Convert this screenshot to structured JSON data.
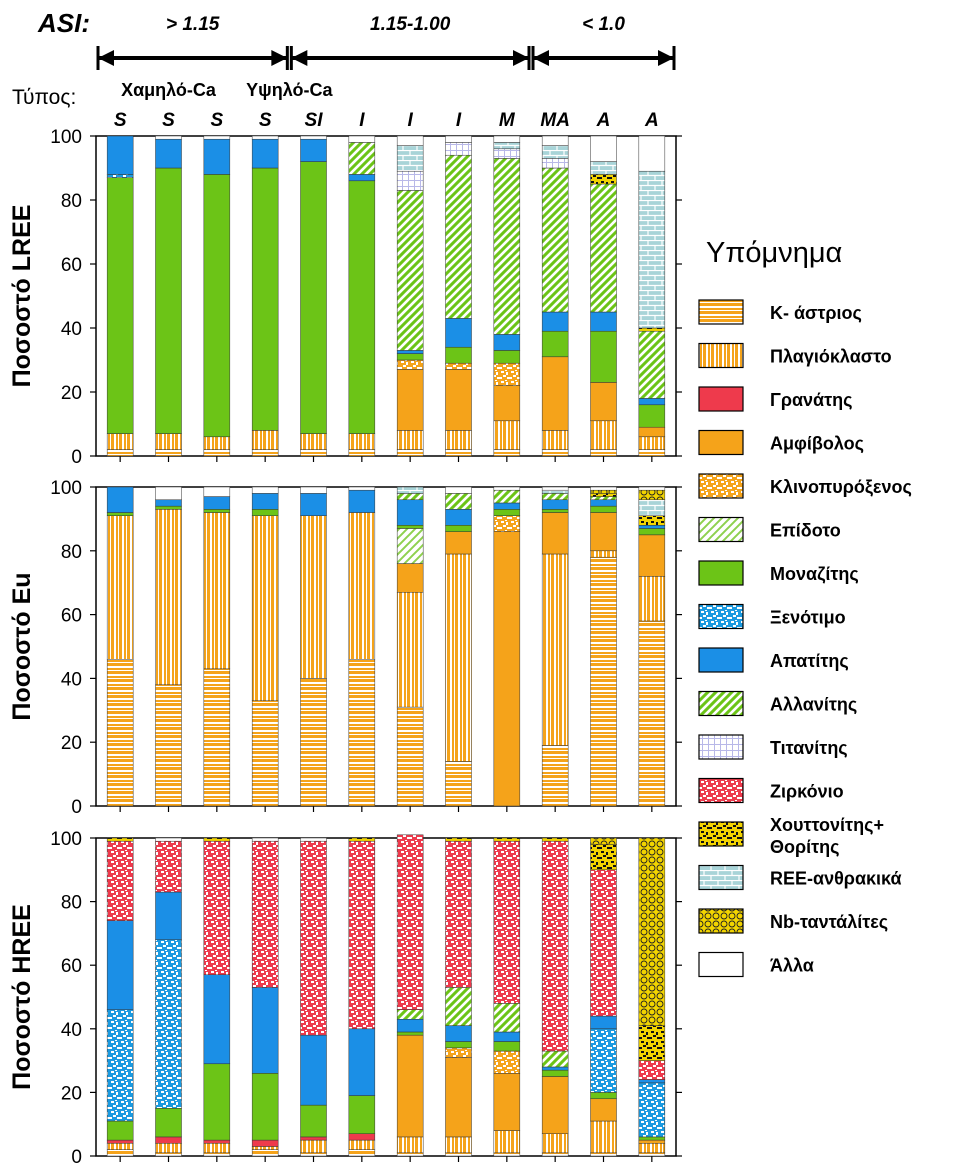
{
  "header": {
    "asi_label": "ASI:",
    "asi_groups": [
      {
        "label": "> 1.15",
        "from": 0,
        "to": 3
      },
      {
        "label": "1.15-1.00",
        "from": 4,
        "to": 8
      },
      {
        "label": "< 1.0",
        "from": 9,
        "to": 11
      }
    ],
    "type_label": "Τύπος:",
    "ca_labels": [
      {
        "label": "Χαμηλό-Ca",
        "from": 0,
        "to": 2
      },
      {
        "label": "Υψηλό-Ca",
        "from": 3,
        "to": 4
      }
    ]
  },
  "legend": {
    "title": "Υπόμνημα",
    "items": [
      {
        "key": "kf",
        "label": "K- άστριος",
        "color": "#f5a31a",
        "pattern": "hstripe"
      },
      {
        "key": "pl",
        "label": "Πλαγιόκλαστο",
        "color": "#f5a31a",
        "pattern": "vstripe"
      },
      {
        "key": "gt",
        "label": "Γρανάτης",
        "color": "#ee3a4c",
        "pattern": "solid"
      },
      {
        "key": "amp",
        "label": "Αμφίβολος",
        "color": "#f5a31a",
        "pattern": "solid"
      },
      {
        "key": "cpx",
        "label": "Κλινοπυρόξενος",
        "color": "#f5a31a",
        "pattern": "speckle"
      },
      {
        "key": "ep",
        "label": "Επίδοτο",
        "color": "#8fd14f",
        "pattern": "thindiag"
      },
      {
        "key": "mnz",
        "label": "Μοναζίτης",
        "color": "#6cc417",
        "pattern": "solid"
      },
      {
        "key": "xen",
        "label": "Ξενότιμο",
        "color": "#1b9ae0",
        "pattern": "speckle"
      },
      {
        "key": "ap",
        "label": "Απατίτης",
        "color": "#1b8fe6",
        "pattern": "solid"
      },
      {
        "key": "aln",
        "label": "Αλλανίτης",
        "color": "#6cc417",
        "pattern": "diag"
      },
      {
        "key": "ttn",
        "label": "Τιτανίτης",
        "color": "#b8b8e8",
        "pattern": "grid"
      },
      {
        "key": "zrn",
        "label": "Ζιρκόνιο",
        "color": "#ee3a4c",
        "pattern": "speckle"
      },
      {
        "key": "hut",
        "label": "Χουττονίτης+",
        "label2": "Θορίτης",
        "color": "#f2d400",
        "pattern": "blackspeckle"
      },
      {
        "key": "carb",
        "label": "REE-ανθρακικά",
        "color": "#a8d4d8",
        "pattern": "brick"
      },
      {
        "key": "nb",
        "label": "Nb-ταντάλίτες",
        "color": "#f2d400",
        "pattern": "circles"
      },
      {
        "key": "oth",
        "label": "Άλλα",
        "color": "#ffffff",
        "pattern": "solid"
      }
    ]
  },
  "chart_data": [
    {
      "type": "bar",
      "stacked": true,
      "ylabel": "Ποσοστό LREE",
      "ylim": [
        0,
        100
      ],
      "yticks": [
        0,
        20,
        40,
        60,
        80,
        100
      ],
      "categories": [
        "S",
        "S",
        "S",
        "S",
        "SI",
        "I",
        "I",
        "I",
        "M",
        "MA",
        "A",
        "A"
      ],
      "series": [
        {
          "name": "K- άστριος",
          "values": [
            2,
            2,
            2,
            2,
            2,
            2,
            2,
            2,
            2,
            2,
            2,
            2
          ]
        },
        {
          "name": "Πλαγιόκλαστο",
          "values": [
            5,
            5,
            4,
            6,
            5,
            5,
            6,
            6,
            9,
            6,
            9,
            4
          ]
        },
        {
          "name": "Γρανάτης",
          "values": [
            0,
            0,
            0,
            0,
            0,
            0,
            0,
            0,
            0,
            0,
            0,
            0
          ]
        },
        {
          "name": "Αμφίβολος",
          "values": [
            0,
            0,
            0,
            0,
            0,
            0,
            19,
            19,
            11,
            23,
            12,
            3
          ]
        },
        {
          "name": "Κλινοπυρόξενος",
          "values": [
            0,
            0,
            0,
            0,
            0,
            0,
            3,
            2,
            7,
            0,
            0,
            0
          ]
        },
        {
          "name": "Επίδοτο",
          "values": [
            0,
            0,
            0,
            0,
            0,
            0,
            0,
            0,
            0,
            0,
            0,
            0
          ]
        },
        {
          "name": "Μοναζίτης",
          "values": [
            80,
            83,
            82,
            82,
            85,
            79,
            2,
            5,
            4,
            8,
            16,
            7
          ]
        },
        {
          "name": "Ξενότιμο",
          "values": [
            1,
            0,
            0,
            0,
            0,
            0,
            0,
            0,
            0,
            0,
            0,
            0
          ]
        },
        {
          "name": "Απατίτης",
          "values": [
            12,
            9,
            11,
            9,
            7,
            2,
            1,
            9,
            5,
            6,
            6,
            2
          ]
        },
        {
          "name": "Αλλανίτης",
          "values": [
            0,
            0,
            0,
            0,
            0,
            10,
            50,
            51,
            55,
            45,
            40,
            21
          ]
        },
        {
          "name": "Τιτανίτης",
          "values": [
            0,
            0,
            0,
            0,
            0,
            0,
            6,
            4,
            3,
            3,
            0,
            0
          ]
        },
        {
          "name": "Ζιρκόνιο",
          "values": [
            0,
            0,
            0,
            0,
            0,
            0,
            0,
            0,
            0,
            0,
            0,
            0
          ]
        },
        {
          "name": "Χουττονίτης+ Θορίτης",
          "values": [
            0,
            0,
            0,
            0,
            0,
            0,
            0,
            0,
            0,
            0,
            3,
            1
          ]
        },
        {
          "name": "REE-ανθρακικά",
          "values": [
            0,
            0,
            0,
            0,
            0,
            0,
            8,
            0,
            2,
            4,
            4,
            49
          ]
        },
        {
          "name": "Nb-ταντάλίτες",
          "values": [
            0,
            0,
            0,
            0,
            0,
            0,
            0,
            0,
            0,
            0,
            0,
            0
          ]
        },
        {
          "name": "Άλλα",
          "values": [
            0,
            1,
            1,
            1,
            1,
            2,
            3,
            2,
            2,
            3,
            8,
            11
          ]
        }
      ]
    },
    {
      "type": "bar",
      "stacked": true,
      "ylabel": "Ποσοστό Eu",
      "ylim": [
        0,
        100
      ],
      "yticks": [
        0,
        20,
        40,
        60,
        80,
        100
      ],
      "categories": [
        "S",
        "S",
        "S",
        "S",
        "SI",
        "I",
        "I",
        "I",
        "M",
        "MA",
        "A",
        "A"
      ],
      "series": [
        {
          "name": "K- άστριος",
          "values": [
            46,
            38,
            43,
            33,
            40,
            46,
            31,
            14,
            0,
            19,
            78,
            58
          ]
        },
        {
          "name": "Πλαγιόκλαστο",
          "values": [
            45,
            55,
            49,
            58,
            51,
            46,
            36,
            65,
            0,
            60,
            2,
            14
          ]
        },
        {
          "name": "Γρανάτης",
          "values": [
            0,
            0,
            0,
            0,
            0,
            0,
            0,
            0,
            0,
            0,
            0,
            0
          ]
        },
        {
          "name": "Αμφίβολος",
          "values": [
            0,
            0,
            0,
            0,
            0,
            0,
            9,
            7,
            86,
            13,
            12,
            13
          ]
        },
        {
          "name": "Κλινοπυρόξενος",
          "values": [
            0,
            0,
            0,
            0,
            0,
            0,
            0,
            0,
            5,
            0,
            0,
            0
          ]
        },
        {
          "name": "Επίδοτο",
          "values": [
            0,
            0,
            0,
            0,
            0,
            0,
            11,
            0,
            0,
            0,
            0,
            0
          ]
        },
        {
          "name": "Μοναζίτης",
          "values": [
            1,
            1,
            1,
            2,
            0,
            0,
            1,
            2,
            2,
            1,
            2,
            2
          ]
        },
        {
          "name": "Ξενότιμο",
          "values": [
            0,
            0,
            0,
            0,
            0,
            0,
            0,
            0,
            0,
            0,
            0,
            0
          ]
        },
        {
          "name": "Απατίτης",
          "values": [
            8,
            2,
            4,
            5,
            7,
            7,
            8,
            5,
            2,
            3,
            2,
            1
          ]
        },
        {
          "name": "Αλλανίτης",
          "values": [
            0,
            0,
            0,
            0,
            0,
            0,
            2,
            5,
            4,
            2,
            1,
            0
          ]
        },
        {
          "name": "Τιτανίτης",
          "values": [
            0,
            0,
            0,
            0,
            0,
            0,
            0,
            0,
            0,
            0,
            0,
            0
          ]
        },
        {
          "name": "Ζιρκόνιο",
          "values": [
            0,
            0,
            0,
            0,
            0,
            0,
            0,
            0,
            0,
            0,
            0,
            0
          ]
        },
        {
          "name": "Χουττονίτης+ Θορίτης",
          "values": [
            0,
            0,
            0,
            0,
            0,
            0,
            0,
            0,
            0,
            0,
            1,
            3
          ]
        },
        {
          "name": "REE-ανθρακικά",
          "values": [
            0,
            0,
            0,
            0,
            0,
            0,
            2,
            0,
            0,
            1,
            0,
            5
          ]
        },
        {
          "name": "Nb-ταντάλίτες",
          "values": [
            0,
            0,
            0,
            0,
            0,
            0,
            0,
            0,
            0,
            0,
            1,
            3
          ]
        },
        {
          "name": "Άλλα",
          "values": [
            0,
            4,
            3,
            2,
            2,
            1,
            0,
            2,
            1,
            1,
            1,
            1
          ]
        }
      ]
    },
    {
      "type": "bar",
      "stacked": true,
      "ylabel": "Ποσοστό HREE",
      "ylim": [
        0,
        100
      ],
      "yticks": [
        0,
        20,
        40,
        60,
        80,
        100
      ],
      "categories": [
        "S",
        "S",
        "S",
        "S",
        "SI",
        "I",
        "I",
        "I",
        "M",
        "MA",
        "A",
        "A"
      ],
      "series": [
        {
          "name": "K- άστριος",
          "values": [
            2,
            1,
            1,
            2,
            1,
            2,
            1,
            1,
            1,
            1,
            1,
            1
          ]
        },
        {
          "name": "Πλαγιόκλαστο",
          "values": [
            2,
            3,
            3,
            1,
            4,
            3,
            5,
            5,
            7,
            6,
            10,
            3
          ]
        },
        {
          "name": "Γρανάτης",
          "values": [
            1,
            2,
            1,
            2,
            1,
            2,
            0,
            0,
            0,
            0,
            0,
            0
          ]
        },
        {
          "name": "Αμφίβολος",
          "values": [
            0,
            0,
            0,
            0,
            0,
            0,
            32,
            25,
            18,
            18,
            7,
            1
          ]
        },
        {
          "name": "Κλινοπυρόξενος",
          "values": [
            0,
            0,
            0,
            0,
            0,
            0,
            0,
            3,
            7,
            0,
            0,
            0
          ]
        },
        {
          "name": "Επίδοτο",
          "values": [
            0,
            0,
            0,
            0,
            0,
            0,
            0,
            0,
            0,
            0,
            0,
            0
          ]
        },
        {
          "name": "Μοναζίτης",
          "values": [
            6,
            9,
            24,
            21,
            10,
            12,
            1,
            2,
            3,
            2,
            2,
            1
          ]
        },
        {
          "name": "Ξενότιμο",
          "values": [
            35,
            53,
            0,
            0,
            0,
            0,
            0,
            0,
            0,
            0,
            20,
            17
          ]
        },
        {
          "name": "Απατίτης",
          "values": [
            28,
            15,
            28,
            27,
            22,
            21,
            4,
            5,
            3,
            1,
            4,
            1
          ]
        },
        {
          "name": "Αλλανίτης",
          "values": [
            0,
            0,
            0,
            0,
            0,
            0,
            3,
            12,
            9,
            5,
            0,
            0
          ]
        },
        {
          "name": "Τιτανίτης",
          "values": [
            0,
            0,
            0,
            0,
            0,
            0,
            0,
            0,
            0,
            0,
            0,
            0
          ]
        },
        {
          "name": "Ζιρκόνιο",
          "values": [
            25,
            16,
            42,
            46,
            61,
            59,
            55,
            46,
            51,
            66,
            46,
            6
          ]
        },
        {
          "name": "Χουττονίτης+ Θορίτης",
          "values": [
            1,
            0,
            1,
            0,
            0,
            1,
            0,
            1,
            1,
            1,
            8,
            11
          ]
        },
        {
          "name": "REE-ανθρακικά",
          "values": [
            0,
            0,
            0,
            0,
            0,
            0,
            0,
            0,
            0,
            0,
            0,
            0
          ]
        },
        {
          "name": "Nb-ταντάλίτες",
          "values": [
            0,
            0,
            0,
            0,
            0,
            0,
            0,
            0,
            0,
            0,
            2,
            59
          ]
        },
        {
          "name": "Άλλα",
          "values": [
            0,
            1,
            0,
            1,
            1,
            0,
            0,
            0,
            0,
            0,
            0,
            0
          ]
        }
      ]
    }
  ]
}
